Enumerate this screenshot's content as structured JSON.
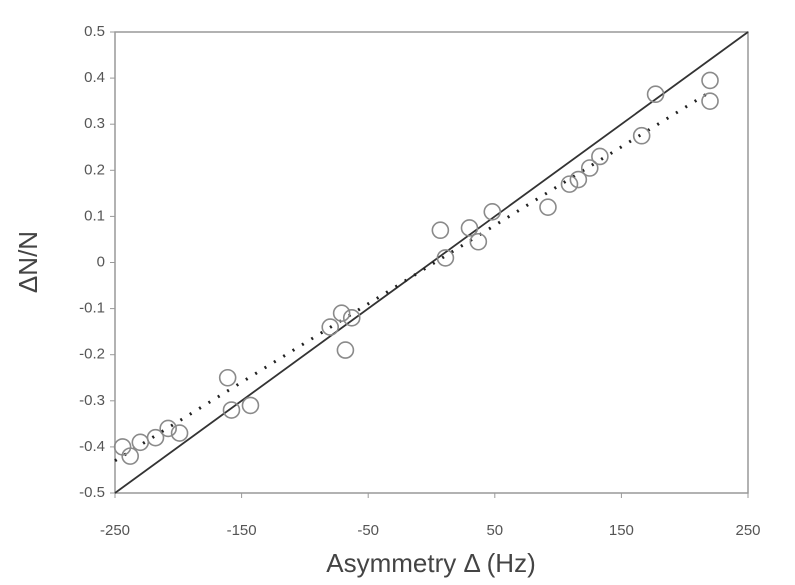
{
  "chart_data": {
    "type": "scatter",
    "xlabel": "Asymmetry Δ (Hz)",
    "ylabel": "ΔN/N",
    "xlim": [
      -250,
      250
    ],
    "ylim": [
      -0.5,
      0.5
    ],
    "xticks": [
      -250,
      -150,
      -50,
      50,
      150,
      250
    ],
    "yticks": [
      -0.5,
      -0.4,
      -0.3,
      -0.2,
      -0.1,
      0,
      0.1,
      0.2,
      0.3,
      0.4,
      0.5
    ],
    "series": [
      {
        "kind": "scatter",
        "color": "#8a8a8a",
        "x": [
          -244,
          -238,
          -230,
          -218,
          -208,
          -199,
          -161,
          -158,
          -143,
          -80,
          -71,
          -68,
          -63,
          7,
          11,
          30,
          37,
          48,
          92,
          109,
          116,
          125,
          133,
          166,
          177,
          220,
          220
        ],
        "values": [
          -0.4,
          -0.42,
          -0.39,
          -0.38,
          -0.36,
          -0.37,
          -0.25,
          -0.32,
          -0.31,
          -0.14,
          -0.11,
          -0.19,
          -0.12,
          0.07,
          0.01,
          0.075,
          0.045,
          0.11,
          0.12,
          0.17,
          0.18,
          0.205,
          0.23,
          0.275,
          0.365,
          0.395,
          0.35
        ]
      },
      {
        "kind": "line",
        "style": "solid",
        "color": "#333333",
        "x": [
          -250,
          250
        ],
        "values": [
          -0.5,
          0.5
        ]
      },
      {
        "kind": "line",
        "style": "dotted",
        "color": "#222222",
        "x": [
          -250,
          220
        ],
        "values": [
          -0.43,
          0.37
        ]
      }
    ]
  }
}
